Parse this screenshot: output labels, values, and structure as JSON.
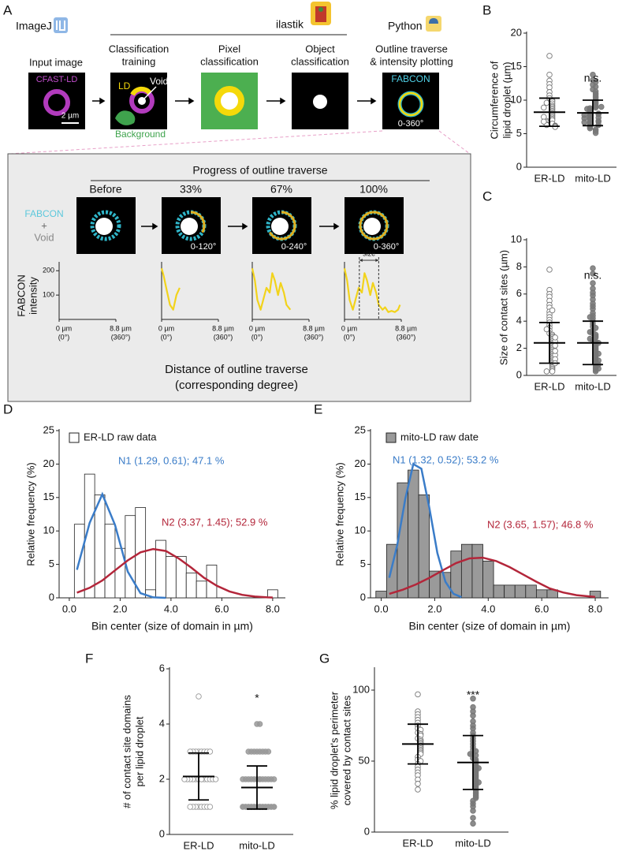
{
  "panel_labels": [
    "A",
    "B",
    "C",
    "D",
    "E",
    "F",
    "G"
  ],
  "workflow": {
    "tools": [
      "ImageJ",
      "ilastik",
      "Python"
    ],
    "steps": [
      [
        "Input image"
      ],
      [
        "Classification",
        "training"
      ],
      [
        "Pixel",
        "classification"
      ],
      [
        "Object",
        "classification"
      ],
      [
        "Outline traverse",
        "& intensity plotting"
      ]
    ],
    "image_labels": {
      "stain": "CFAST-LD",
      "scale": "2 µm",
      "ld": "LD",
      "void": "Void",
      "background": "Background",
      "probe": "FABCON",
      "degree": "0-360°"
    }
  },
  "traverse": {
    "title": "Progress of outline traverse",
    "stages": [
      "Before",
      "33%",
      "67%",
      "100%"
    ],
    "degrees": [
      "0-120°",
      "0-240°",
      "0-360°"
    ],
    "overlay": [
      "FABCON",
      "+",
      "Void"
    ],
    "y_label": [
      "FABCON",
      "intensity"
    ],
    "x_label": [
      "Distance of outline traverse",
      "(corresponding degree)"
    ]
  },
  "chart_data": [
    {
      "type": "line",
      "xlim": [
        0,
        8.8
      ],
      "ylim": [
        0,
        230
      ],
      "yticks": [
        100,
        200
      ],
      "xticks": [
        {
          "value": 0,
          "label": "0 µm",
          "sublabel": "(0°)"
        },
        {
          "value": 8.8,
          "label": "8.8 µm",
          "sublabel": "(360°)"
        }
      ]
    },
    {
      "type": "line",
      "xlim": [
        0,
        8.8
      ],
      "ylim": [
        0,
        230
      ],
      "xticks": [
        {
          "value": 0,
          "label": "0 µm",
          "sublabel": "(0°)"
        },
        {
          "value": 8.8,
          "label": "8.8 µm",
          "sublabel": "(360°)"
        }
      ],
      "series": [
        {
          "color": "#f2d31b",
          "x": [
            0,
            0.3,
            0.8,
            1.3,
            1.8,
            2.3,
            2.8
          ],
          "values": [
            210,
            180,
            120,
            60,
            40,
            100,
            130
          ]
        }
      ]
    },
    {
      "type": "line",
      "xlim": [
        0,
        8.8
      ],
      "ylim": [
        0,
        230
      ],
      "xticks": [
        {
          "value": 0,
          "label": "0 µm",
          "sublabel": "(0°)"
        },
        {
          "value": 8.8,
          "label": "8.8 µm",
          "sublabel": "(360°)"
        }
      ],
      "series": [
        {
          "color": "#f2d31b",
          "x": [
            0,
            0.4,
            0.8,
            1.3,
            1.8,
            2.2,
            2.7,
            3.1,
            3.5,
            4.0,
            4.4,
            4.9,
            5.3,
            5.9
          ],
          "values": [
            210,
            160,
            80,
            40,
            90,
            130,
            110,
            190,
            160,
            100,
            150,
            110,
            60,
            40
          ]
        }
      ]
    },
    {
      "type": "line",
      "xlim": [
        0,
        8.8
      ],
      "ylim": [
        0,
        230
      ],
      "xticks": [
        {
          "value": 0,
          "label": "0 µm",
          "sublabel": "(0°)"
        },
        {
          "value": 8.8,
          "label": "8.8 µm",
          "sublabel": "(360°)"
        }
      ],
      "series": [
        {
          "color": "#f2d31b",
          "x": [
            0,
            0.4,
            0.8,
            1.3,
            1.8,
            2.2,
            2.7,
            3.1,
            3.5,
            4.0,
            4.4,
            4.9,
            5.3,
            5.9,
            6.3,
            6.8,
            7.3,
            7.8,
            8.3,
            8.6
          ],
          "values": [
            210,
            160,
            80,
            40,
            90,
            130,
            110,
            190,
            160,
            100,
            150,
            110,
            60,
            40,
            50,
            30,
            35,
            30,
            40,
            60
          ]
        }
      ],
      "annotation": {
        "text": "size",
        "span": [
          2.3,
          5.3
        ]
      }
    },
    {
      "type": "strip",
      "y_label": [
        "Circumference of",
        "lipid droplet (µm)"
      ],
      "categories": [
        "ER-LD",
        "mito-LD"
      ],
      "ylim": [
        0,
        20
      ],
      "yticks": [
        0,
        5,
        10,
        15,
        20
      ],
      "series": [
        {
          "marker": "open",
          "color": "#777777",
          "mean": 8.2,
          "sd": 2.1,
          "values": [
            16.6,
            13.8,
            12.9,
            12.4,
            11.9,
            11.2,
            10.7,
            10.3,
            10,
            9.8,
            9.5,
            9.2,
            9,
            8.8,
            8.6,
            8.4,
            8.2,
            8,
            7.8,
            7.6,
            7.4,
            7.2,
            7,
            6.9,
            6.7,
            6.5,
            6.4,
            6.3,
            6.2,
            6.1,
            6,
            9.6,
            8.9,
            7.5,
            6.8
          ]
        },
        {
          "marker": "filled",
          "color": "#777777",
          "mean": 8.1,
          "sd": 1.9,
          "annotation": "n.s.",
          "values": [
            13.8,
            13,
            12.7,
            12.3,
            12,
            11.6,
            11.3,
            11,
            10.8,
            10.5,
            10.3,
            10.1,
            9.9,
            9.7,
            9.5,
            9.3,
            9.1,
            8.9,
            8.8,
            8.6,
            8.5,
            8.3,
            8.2,
            8.1,
            8,
            7.9,
            7.7,
            7.6,
            7.5,
            7.4,
            7.2,
            7.1,
            7,
            6.9,
            6.8,
            6.6,
            6.5,
            6.4,
            6.3,
            6.1,
            6,
            5.8,
            5.6,
            5.4,
            5.1,
            8.7,
            9,
            7.8,
            7.3,
            6.7
          ]
        }
      ]
    },
    {
      "type": "strip",
      "y_label": [
        "Size of contact sites (µm)"
      ],
      "categories": [
        "ER-LD",
        "mito-LD"
      ],
      "ylim": [
        0,
        10
      ],
      "yticks": [
        0,
        2,
        4,
        6,
        8,
        10
      ],
      "series": [
        {
          "marker": "open",
          "color": "#777777",
          "mean": 2.4,
          "sd": 1.5,
          "values": [
            7.8,
            6.3,
            6,
            5.8,
            5.5,
            5.2,
            5,
            4.7,
            4.5,
            4.3,
            4.1,
            3.9,
            3.7,
            3.5,
            3.3,
            3.1,
            3,
            2.9,
            2.8,
            2.7,
            2.6,
            2.5,
            2.4,
            2.3,
            2.2,
            2.1,
            2,
            1.9,
            1.8,
            1.7,
            1.6,
            1.5,
            1.4,
            1.3,
            1.2,
            1.1,
            1,
            0.9,
            0.8,
            0.7,
            0.6,
            0.5,
            0.4,
            0.3,
            0.3,
            2.5,
            1.5,
            3.4,
            2.2,
            1.2,
            0.9,
            4.8,
            2.8,
            1.8
          ]
        },
        {
          "marker": "filled",
          "color": "#777777",
          "mean": 2.4,
          "sd": 1.6,
          "annotation": "n.s.",
          "values": [
            7.9,
            7.5,
            6.8,
            6.4,
            6.1,
            5.9,
            5.6,
            5.3,
            5.1,
            4.9,
            4.6,
            4.4,
            4.2,
            4,
            3.8,
            3.6,
            3.5,
            3.3,
            3.1,
            3,
            2.9,
            2.8,
            2.6,
            2.5,
            2.4,
            2.3,
            2.2,
            2.1,
            2,
            1.9,
            1.8,
            1.7,
            1.6,
            1.5,
            1.4,
            1.3,
            1.2,
            1.1,
            1,
            0.9,
            0.8,
            0.7,
            0.6,
            0.5,
            0.4,
            0.3,
            1.6,
            2.4,
            3.2,
            1.1,
            0.8,
            0.5,
            4.3,
            2.7
          ]
        }
      ]
    },
    {
      "type": "histogram",
      "y_label": "Relative frequency (%)",
      "x_label": "Bin center (size of domain in µm)",
      "xlim": [
        -0.4,
        8.5
      ],
      "ylim": [
        0,
        25
      ],
      "yticks": [
        0,
        5,
        10,
        15,
        20,
        25
      ],
      "xticks": [
        {
          "value": 0,
          "label": "0.0"
        },
        {
          "value": 2,
          "label": "2.0"
        },
        {
          "value": 4,
          "label": "4.0"
        },
        {
          "value": 6,
          "label": "6.0"
        },
        {
          "value": 8,
          "label": "8.0"
        }
      ],
      "bins": [
        0.2,
        0.6,
        1.0,
        1.4,
        1.8,
        2.2,
        2.6,
        3.0,
        3.4,
        3.8,
        4.2,
        4.6,
        5.0,
        5.4,
        5.8,
        6.2,
        6.6,
        7.0,
        7.4,
        7.8,
        8.2
      ],
      "series": [
        {
          "name": "ER-LD raw data",
          "color": "#ffffff",
          "values": [
            11,
            18.5,
            15.4,
            11,
            7.4,
            12.3,
            13.5,
            1.2,
            8.6,
            6.2,
            6.2,
            3.7,
            2.5,
            4.9,
            0,
            0,
            0,
            0,
            0,
            1.2
          ]
        }
      ],
      "curves": [
        {
          "name": "N1 (1.29, 0.61); 47.1 %",
          "color": "#3a7cc8",
          "x": [
            0.3,
            0.8,
            1.3,
            1.8,
            2.3,
            2.8,
            3.3,
            3.8
          ],
          "values": [
            4.2,
            11.2,
            15.5,
            10.9,
            3.9,
            0.7,
            0.07,
            0
          ]
        },
        {
          "name": "N2 (3.37, 1.45); 52.9 %",
          "color": "#b3263a",
          "x": [
            0.3,
            0.8,
            1.3,
            1.8,
            2.3,
            2.8,
            3.3,
            3.8,
            4.3,
            4.8,
            5.3,
            5.8,
            6.3,
            6.8,
            7.3,
            7.8,
            8.0
          ],
          "values": [
            0.78,
            1.5,
            2.6,
            4.1,
            5.6,
            6.8,
            7.3,
            7.0,
            5.9,
            4.5,
            3.0,
            1.8,
            0.95,
            0.45,
            0.19,
            0.07,
            0.05
          ]
        }
      ]
    },
    {
      "type": "histogram",
      "y_label": "Relative frequency (%)",
      "x_label": "Bin center (size of domain in µm)",
      "xlim": [
        -0.4,
        8.5
      ],
      "ylim": [
        0,
        25
      ],
      "yticks": [
        0,
        5,
        10,
        15,
        20,
        25
      ],
      "xticks": [
        {
          "value": 0,
          "label": "0.0"
        },
        {
          "value": 2,
          "label": "2.0"
        },
        {
          "value": 4,
          "label": "4.0"
        },
        {
          "value": 6,
          "label": "6.0"
        },
        {
          "value": 8,
          "label": "8.0"
        }
      ],
      "bins": [
        -0.2,
        0.2,
        0.6,
        1.0,
        1.4,
        1.8,
        2.2,
        2.6,
        3.0,
        3.4,
        3.8,
        4.2,
        4.6,
        5.0,
        5.4,
        5.8,
        6.2,
        6.6,
        7.0,
        7.4,
        7.8,
        8.2
      ],
      "series": [
        {
          "name": "mito-LD raw date",
          "color": "#9a9a9a",
          "values": [
            1,
            8,
            17.2,
            19.1,
            15.4,
            4,
            3.8,
            7,
            8,
            8,
            5.5,
            1.9,
            1.9,
            1.9,
            1.9,
            1.2,
            1.2,
            0,
            0,
            0,
            1
          ]
        }
      ],
      "curves": [
        {
          "name": "N1 (1.32, 0.52); 53.2 %",
          "color": "#3a7cc8",
          "x": [
            0.3,
            0.6,
            0.9,
            1.2,
            1.5,
            1.8,
            2.1,
            2.4,
            2.7,
            3.0
          ],
          "values": [
            3.0,
            7.9,
            14.8,
            20.0,
            19.3,
            13.4,
            6.7,
            2.4,
            0.6,
            0.1
          ]
        },
        {
          "name": "N2 (3.65, 1.57); 46.8 %",
          "color": "#b3263a",
          "x": [
            0.3,
            0.8,
            1.3,
            1.8,
            2.3,
            2.8,
            3.3,
            3.8,
            4.3,
            4.8,
            5.3,
            5.8,
            6.3,
            6.8,
            7.3,
            7.8,
            8.0
          ],
          "values": [
            0.6,
            1.2,
            2.0,
            3.0,
            4.1,
            5.2,
            5.9,
            6.0,
            5.5,
            4.6,
            3.5,
            2.4,
            1.4,
            0.8,
            0.4,
            0.2,
            0.13
          ]
        }
      ]
    },
    {
      "type": "strip",
      "y_label": [
        "# of contact site domains",
        "per lipid droplet"
      ],
      "categories": [
        "ER-LD",
        "mito-LD"
      ],
      "ylim": [
        0,
        6
      ],
      "yticks": [
        0,
        2,
        4,
        6
      ],
      "series": [
        {
          "marker": "open",
          "color": "#999999",
          "mean": 2.1,
          "sd": 0.85,
          "values": [
            5,
            3,
            3,
            3,
            3,
            3,
            3,
            3,
            3,
            2,
            2,
            2,
            2,
            2,
            2,
            2,
            2,
            2,
            2,
            2,
            2,
            2,
            2,
            1,
            1,
            1,
            1,
            1,
            1,
            1,
            1
          ]
        },
        {
          "marker": "filled",
          "color": "#999999",
          "mean": 1.7,
          "sd": 0.78,
          "annotation": "*",
          "values": [
            4,
            4,
            3,
            3,
            3,
            3,
            3,
            3,
            3,
            3,
            2,
            2,
            2,
            2,
            2,
            2,
            2,
            2,
            2,
            2,
            2,
            2,
            2,
            2,
            1,
            1,
            1,
            1,
            1,
            1,
            1,
            1,
            1,
            1,
            1,
            1,
            1,
            1,
            1,
            1,
            1,
            1,
            1,
            1,
            1,
            1,
            1,
            1,
            1,
            1
          ]
        }
      ]
    },
    {
      "type": "strip",
      "y_label": [
        "% lipid droplet's perimeter",
        "covered by contact sites"
      ],
      "categories": [
        "ER-LD",
        "mito-LD"
      ],
      "ylim": [
        0,
        115
      ],
      "yticks": [
        0,
        50,
        100
      ],
      "series": [
        {
          "marker": "open",
          "color": "#777777",
          "mean": 62,
          "sd": 14,
          "values": [
            97,
            85,
            83,
            81,
            79,
            77,
            75,
            73,
            72,
            70,
            69,
            68,
            66,
            65,
            64,
            63,
            62,
            61,
            60,
            59,
            58,
            57,
            56,
            55,
            53,
            51,
            50,
            48,
            46,
            44,
            42,
            40,
            37,
            34,
            30
          ]
        },
        {
          "marker": "filled",
          "color": "#777777",
          "mean": 49,
          "sd": 19,
          "annotation": "***",
          "values": [
            94,
            88,
            85,
            82,
            78,
            75,
            73,
            70,
            68,
            66,
            64,
            62,
            60,
            58,
            57,
            55,
            54,
            52,
            51,
            50,
            49,
            48,
            47,
            46,
            45,
            44,
            43,
            42,
            41,
            40,
            39,
            38,
            37,
            36,
            35,
            34,
            33,
            32,
            31,
            30,
            29,
            28,
            27,
            26,
            25,
            24,
            22,
            20,
            18,
            15,
            10,
            6,
            55,
            45,
            35
          ]
        }
      ]
    }
  ]
}
